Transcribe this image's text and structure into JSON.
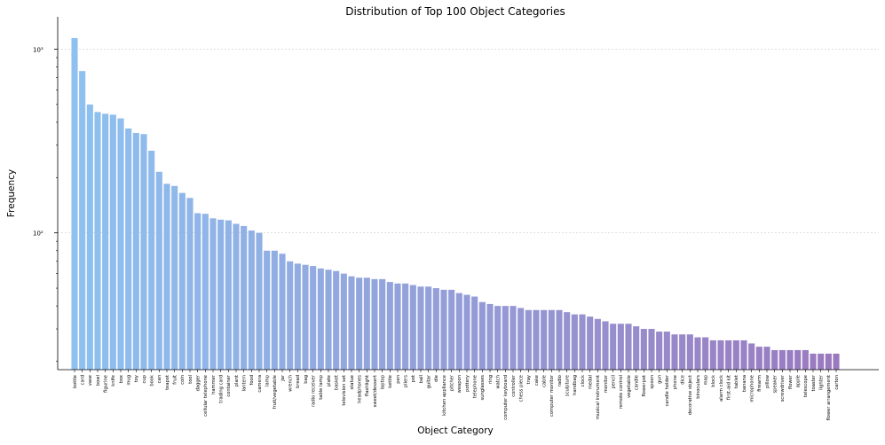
{
  "chart_data": {
    "type": "bar",
    "title": "Distribution of Top 100 Object Categories",
    "xlabel": "Object Category",
    "ylabel": "Frequency",
    "yscale": "log",
    "ylim": [
      18,
      1500
    ],
    "yticks": [
      {
        "value": 100,
        "label": "10²"
      },
      {
        "value": 1000,
        "label": "10³"
      }
    ],
    "grid": "horizontal dotted at major ticks",
    "color_start": "#8ec1f0",
    "color_end": "#9a79bf",
    "categories": [
      "bottle",
      "card",
      "vase",
      "bowl",
      "figurine",
      "knife",
      "box",
      "mug",
      "toy",
      "cup",
      "book",
      "can",
      "teapot",
      "fruit",
      "coin",
      "tool",
      "dagger",
      "cellular telephone",
      "hammer",
      "trading card",
      "container",
      "plant",
      "lantern",
      "food",
      "camera",
      "lamp",
      "fruit/vegetable",
      "jar",
      "wrench",
      "bread",
      "bag",
      "radio receiver",
      "table lamp",
      "plate",
      "basket",
      "television set",
      "statue",
      "headphones",
      "flashlight",
      "sweet/dessert",
      "laptop",
      "kettle",
      "pen",
      "pliers",
      "pot",
      "ball",
      "guitar",
      "die",
      "kitchen appliance",
      "pitcher",
      "weapon",
      "pottery",
      "telephone",
      "sunglasses",
      "ring",
      "watch",
      "computer keyboard",
      "controller",
      "chess piece",
      "tray",
      "cake",
      "cable",
      "computer monitor",
      "radio",
      "sculpture",
      "handbag",
      "clock",
      "medal",
      "musical instrument",
      "monitor",
      "pencil",
      "remote control",
      "vegetable",
      "candle",
      "flowerpot",
      "spoon",
      "gun",
      "candle holder",
      "phone",
      "dice",
      "decorative object",
      "binoculars",
      "map",
      "block",
      "alarm clock",
      "first-aid kit",
      "tablet",
      "banana",
      "microphone",
      "firearm",
      "pillow",
      "speaker",
      "screwdriver",
      "flower",
      "apple",
      "telescope",
      "toaster",
      "lighter",
      "flower arrangement",
      "carton"
    ],
    "values": [
      1150,
      760,
      500,
      455,
      445,
      440,
      420,
      370,
      350,
      345,
      280,
      215,
      185,
      180,
      165,
      155,
      128,
      127,
      120,
      118,
      117,
      112,
      109,
      103,
      100,
      80,
      80,
      77,
      70,
      68,
      67,
      66,
      64,
      63,
      62,
      60,
      58,
      57,
      57,
      56,
      56,
      54,
      53,
      53,
      52,
      51,
      51,
      50,
      49,
      49,
      47,
      46,
      45,
      42,
      41,
      40,
      40,
      40,
      39,
      38,
      38,
      38,
      38,
      38,
      37,
      36,
      36,
      35,
      34,
      33,
      32,
      32,
      32,
      31,
      30,
      30,
      29,
      29,
      28,
      28,
      28,
      27,
      27,
      26,
      26,
      26,
      26,
      26,
      25,
      24,
      24,
      23,
      23,
      23,
      23,
      23,
      22,
      22,
      22,
      22
    ]
  }
}
